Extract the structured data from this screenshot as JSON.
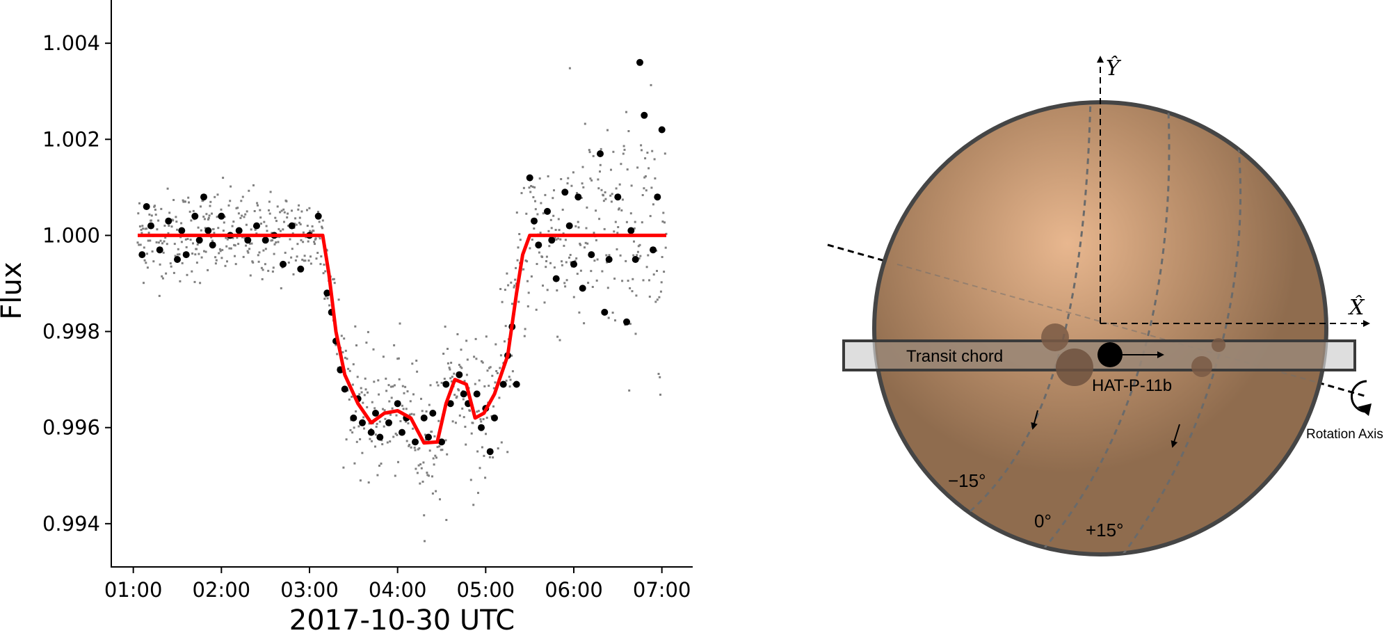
{
  "chart_data": [
    {
      "type": "scatter",
      "xlabel": "2017-10-30 UTC",
      "ylabel": "Flux",
      "x_unit": "hours UTC",
      "xlim": [
        0.75,
        7.35
      ],
      "ylim": [
        0.9931,
        1.0049
      ],
      "x_ticks": [
        1,
        2,
        3,
        4,
        5,
        6,
        7
      ],
      "x_tick_labels": [
        "01:00",
        "02:00",
        "03:00",
        "04:00",
        "05:00",
        "06:00",
        "07:00"
      ],
      "y_ticks": [
        0.994,
        0.996,
        0.998,
        1.0,
        1.002,
        1.004
      ],
      "y_tick_labels": [
        "0.994",
        "0.996",
        "0.998",
        "1.000",
        "1.002",
        "1.004"
      ],
      "grid": false,
      "model": {
        "color": "#ff0000",
        "x": [
          1.05,
          3.15,
          3.22,
          3.3,
          3.4,
          3.55,
          3.7,
          3.85,
          4.0,
          4.15,
          4.3,
          4.45,
          4.55,
          4.65,
          4.78,
          4.88,
          4.98,
          5.1,
          5.25,
          5.35,
          5.42,
          5.5,
          7.05
        ],
        "y": [
          1.0,
          1.0,
          0.9992,
          0.998,
          0.9971,
          0.9965,
          0.9961,
          0.9963,
          0.99635,
          0.9962,
          0.99568,
          0.9957,
          0.9965,
          0.997,
          0.9969,
          0.9962,
          0.9963,
          0.9967,
          0.9975,
          0.9988,
          0.9996,
          1.0,
          1.0
        ]
      },
      "binned_points": {
        "color": "#000000",
        "x": [
          1.1,
          1.15,
          1.2,
          1.3,
          1.4,
          1.5,
          1.55,
          1.6,
          1.7,
          1.75,
          1.8,
          1.85,
          1.9,
          2.0,
          2.1,
          2.2,
          2.3,
          2.4,
          2.5,
          2.6,
          2.7,
          2.8,
          2.9,
          3.0,
          3.1,
          3.2,
          3.25,
          3.3,
          3.35,
          3.4,
          3.5,
          3.55,
          3.6,
          3.7,
          3.75,
          3.8,
          3.9,
          4.0,
          4.05,
          4.1,
          4.2,
          4.3,
          4.35,
          4.4,
          4.5,
          4.55,
          4.6,
          4.7,
          4.75,
          4.8,
          4.9,
          4.95,
          5.0,
          5.05,
          5.1,
          5.2,
          5.25,
          5.3,
          5.35,
          5.5,
          5.55,
          5.6,
          5.7,
          5.75,
          5.8,
          5.9,
          5.95,
          6.0,
          6.05,
          6.1,
          6.2,
          6.3,
          6.35,
          6.4,
          6.5,
          6.6,
          6.65,
          6.7,
          6.75,
          6.8,
          6.9,
          6.95,
          7.0
        ],
        "y": [
          0.9996,
          1.0006,
          1.0002,
          0.9997,
          1.0003,
          0.9995,
          1.0001,
          0.9996,
          1.0004,
          0.9999,
          1.0008,
          1.0001,
          0.9998,
          1.0004,
          1.0,
          1.0001,
          0.9999,
          1.0002,
          0.9999,
          1.0,
          0.9994,
          1.0002,
          0.9993,
          1.0,
          1.0004,
          0.9988,
          0.9984,
          0.9978,
          0.9972,
          0.9968,
          0.9962,
          0.9966,
          0.9961,
          0.9959,
          0.9963,
          0.9958,
          0.9961,
          0.9965,
          0.9959,
          0.9962,
          0.9957,
          0.9962,
          0.9958,
          0.9963,
          0.9957,
          0.9969,
          0.9965,
          0.9971,
          0.9967,
          0.9965,
          0.9967,
          0.996,
          0.9964,
          0.9955,
          0.9962,
          0.9969,
          0.9975,
          0.9981,
          0.9969,
          1.0012,
          1.0003,
          0.9998,
          1.0005,
          0.9999,
          0.9991,
          1.0009,
          1.0002,
          0.9994,
          1.0008,
          0.9989,
          0.9996,
          1.0017,
          0.9984,
          0.9995,
          1.0008,
          0.9982,
          1.0001,
          0.9995,
          1.0036,
          1.0025,
          0.9997,
          1.0008,
          1.0022
        ]
      },
      "raw_points": {
        "color": "#808080",
        "count": 900,
        "note_pairs": [
          [
            1.05,
            1.0,
            0.0008
          ],
          [
            3.15,
            1.0,
            0.0008
          ],
          [
            3.3,
            0.998,
            0.0009
          ],
          [
            3.5,
            0.9963,
            0.0011
          ],
          [
            4.0,
            0.9963,
            0.0011
          ],
          [
            4.4,
            0.9957,
            0.0012
          ],
          [
            4.8,
            0.9969,
            0.0012
          ],
          [
            5.0,
            0.9962,
            0.0013
          ],
          [
            5.3,
            0.9978,
            0.0013
          ],
          [
            5.5,
            1.0,
            0.0016
          ],
          [
            6.3,
            1.0,
            0.0019
          ],
          [
            7.05,
            1.0,
            0.0022
          ]
        ]
      }
    },
    {
      "type": "diagram",
      "labels": {
        "y_axis": "Ŷ",
        "x_axis": "X̂",
        "transit_chord": "Transit chord",
        "planet": "HAT-P-11b",
        "rotation_axis": "Rotation Axis",
        "lat_minus15": "−15°",
        "lat_0": "0°",
        "lat_plus15": "+15°"
      },
      "colors": {
        "star_center": "#e7b58e",
        "star_mid": "#b58b66",
        "star_edge": "#8f6c4e",
        "star_outline": "#454545",
        "chord_fill": "#d0d0d0",
        "chord_outline": "#3a3a3a",
        "spot": "#7a5a45",
        "planet": "#000000"
      }
    }
  ]
}
